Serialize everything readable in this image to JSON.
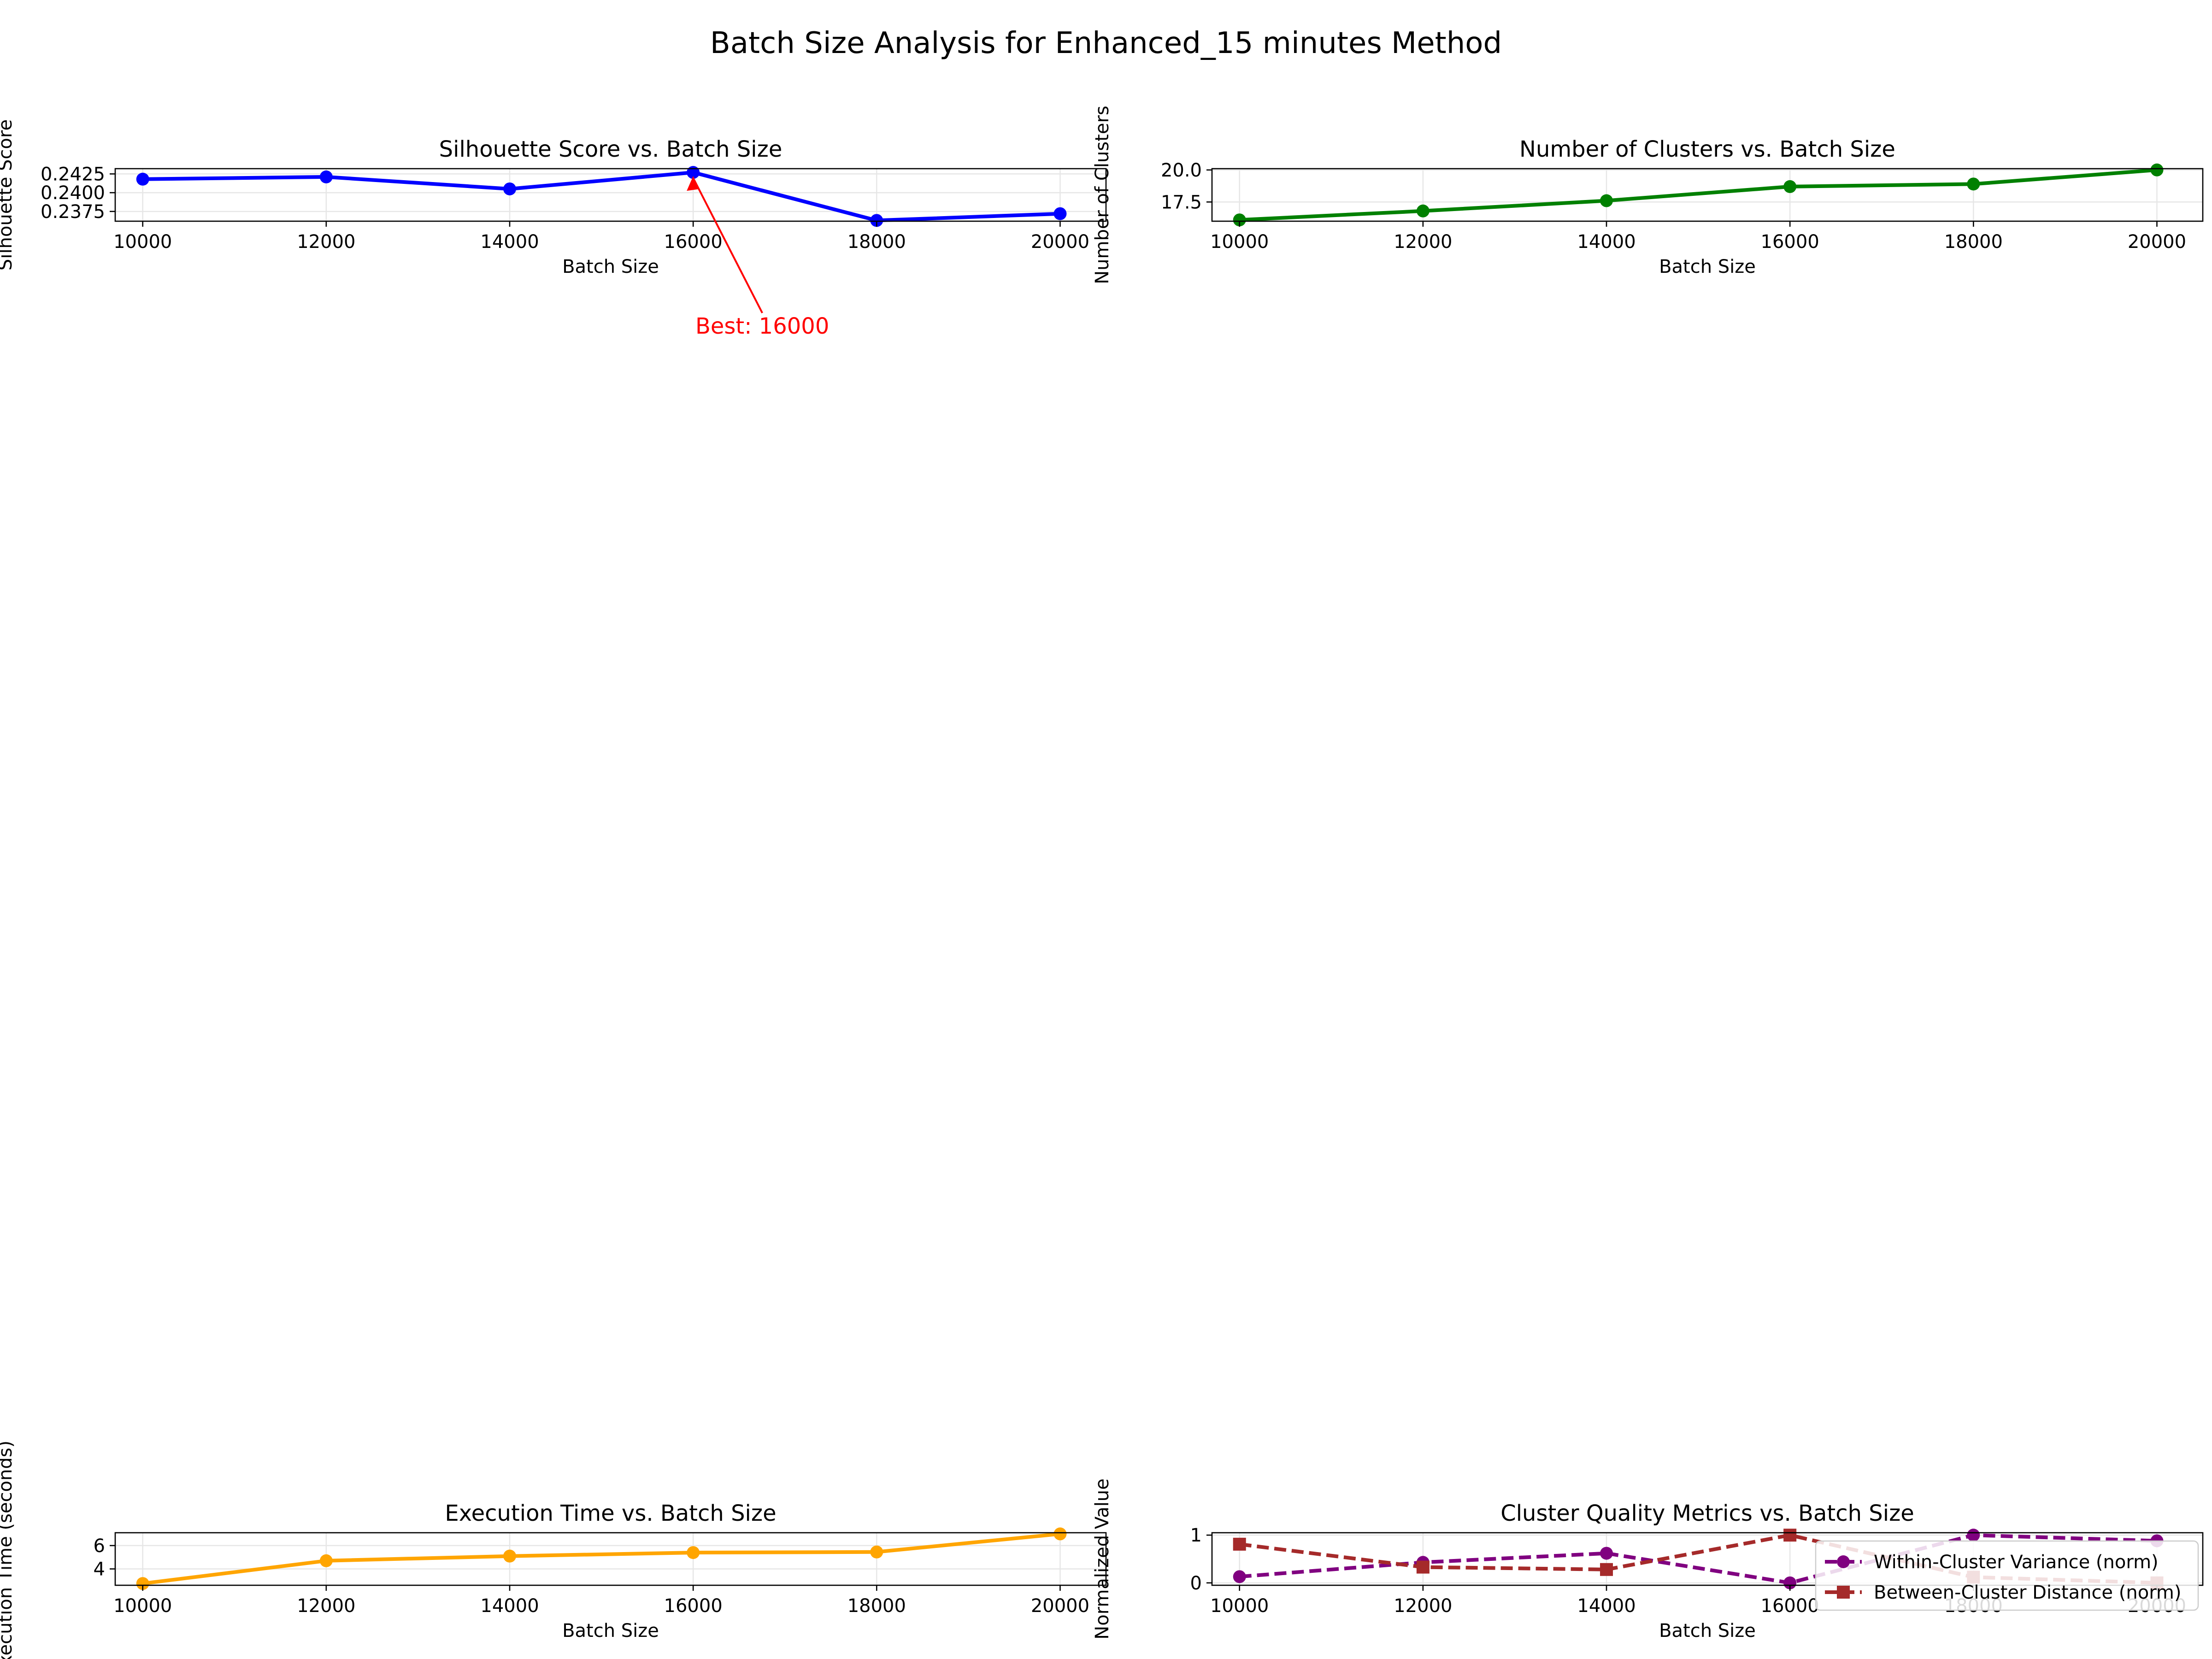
{
  "figure": {
    "title": "Batch Size Analysis for Enhanced_15 minutes Method"
  },
  "chart_data": [
    {
      "id": "silhouette",
      "type": "line",
      "title": "Silhouette Score vs. Batch Size",
      "xlabel": "Batch Size",
      "ylabel": "Silhouette Score",
      "xlim": [
        9700,
        20500
      ],
      "ylim": [
        0.2362,
        0.2432
      ],
      "xticks": [
        10000,
        12000,
        14000,
        16000,
        18000,
        20000
      ],
      "yticks": [
        0.2375,
        0.24,
        0.2425
      ],
      "ytick_decimals": 4,
      "grid": true,
      "color": "#0000ff",
      "marker": "circle",
      "dashed": false,
      "x": [
        10000,
        12000,
        14000,
        16000,
        18000,
        20000
      ],
      "series": [
        {
          "values": [
            0.2418,
            0.2421,
            0.2405,
            0.2427,
            0.2363,
            0.2372
          ],
          "color": "#0000ff",
          "marker": "circle",
          "dashed": false
        }
      ],
      "annotation": {
        "text": "Best: 16000",
        "x": 16000,
        "y": 0.2427,
        "color": "#ff0000"
      }
    },
    {
      "id": "clusters",
      "type": "line",
      "title": "Number of Clusters vs. Batch Size",
      "xlabel": "Batch Size",
      "ylabel": "Number of Clusters",
      "xlim": [
        9700,
        20500
      ],
      "ylim": [
        16.0,
        20.1
      ],
      "xticks": [
        10000,
        12000,
        14000,
        16000,
        18000,
        20000
      ],
      "yticks": [
        17.5,
        20.0
      ],
      "ytick_decimals": 1,
      "grid": true,
      "x": [
        10000,
        12000,
        14000,
        16000,
        18000,
        20000
      ],
      "series": [
        {
          "values": [
            16.1,
            16.8,
            17.6,
            18.7,
            18.9,
            20.0
          ],
          "color": "#008000",
          "marker": "circle",
          "dashed": false
        }
      ]
    },
    {
      "id": "exectime",
      "type": "line",
      "title": "Execution Time vs. Batch Size",
      "xlabel": "Batch Size",
      "ylabel": "Execution Time (seconds)",
      "xlim": [
        9700,
        20500
      ],
      "ylim": [
        2.6,
        7.1
      ],
      "xticks": [
        10000,
        12000,
        14000,
        16000,
        18000,
        20000
      ],
      "yticks": [
        4,
        6
      ],
      "ytick_decimals": 0,
      "grid": true,
      "x": [
        10000,
        12000,
        14000,
        16000,
        18000,
        20000
      ],
      "series": [
        {
          "values": [
            2.75,
            4.7,
            5.1,
            5.4,
            5.45,
            7.0
          ],
          "color": "#ffa500",
          "marker": "circle",
          "dashed": false
        }
      ]
    },
    {
      "id": "quality",
      "type": "line",
      "title": "Cluster Quality Metrics vs. Batch Size",
      "xlabel": "Batch Size",
      "ylabel": "Normalized Value",
      "xlim": [
        9700,
        20500
      ],
      "ylim": [
        -0.05,
        1.05
      ],
      "xticks": [
        10000,
        12000,
        14000,
        16000,
        18000,
        20000
      ],
      "yticks": [
        0,
        1
      ],
      "ytick_decimals": 0,
      "grid": true,
      "x": [
        10000,
        12000,
        14000,
        16000,
        18000,
        20000
      ],
      "legend": {
        "placement": "lower-right"
      },
      "series": [
        {
          "name": "Within-Cluster Variance (norm)",
          "values": [
            0.13,
            0.43,
            0.62,
            0.0,
            1.0,
            0.88
          ],
          "color": "#800080",
          "marker": "circle",
          "dashed": true
        },
        {
          "name": "Between-Cluster Distance (norm)",
          "values": [
            0.81,
            0.33,
            0.28,
            1.0,
            0.12,
            0.0
          ],
          "color": "#a52a2a",
          "marker": "square",
          "dashed": true
        }
      ]
    }
  ]
}
